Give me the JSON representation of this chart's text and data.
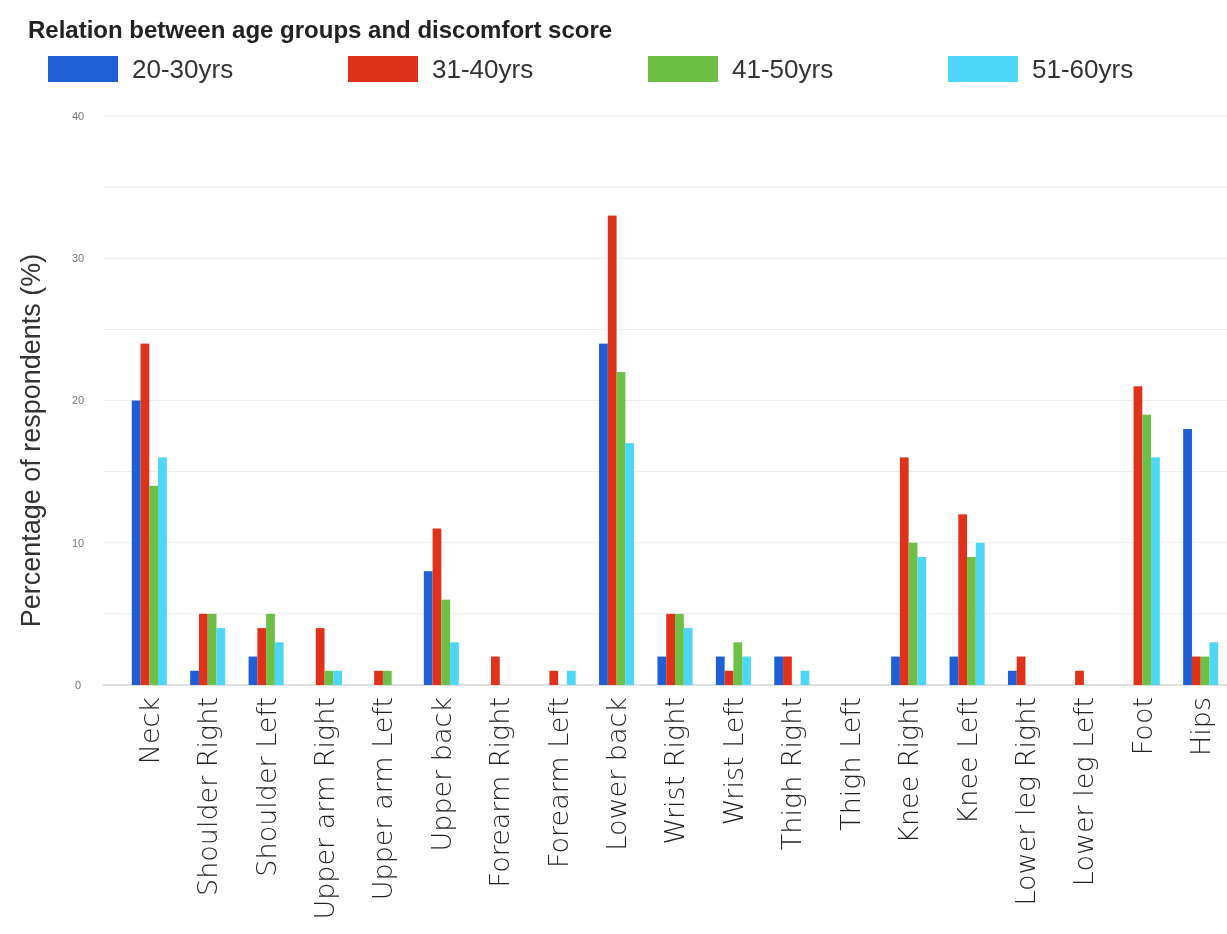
{
  "chart_data": {
    "type": "bar",
    "title": "Relation between age groups and discomfort score",
    "ylabel": "Percentage of respondents (%)",
    "categories": [
      "Neck",
      "Shoulder Right",
      "Shoulder Left",
      "Upper arm Right",
      "Upper arm Left",
      "Upper back",
      "Forearm Right",
      "Forearm Left",
      "Lower back",
      "Wrist Right",
      "Wrist Left",
      "Thigh Right",
      "Thigh Left",
      "Knee Right",
      "Knee Left",
      "Lower leg Right",
      "Lower leg Left",
      "Foot",
      "Hips"
    ],
    "series": [
      {
        "name": "20-30yrs",
        "color": "#1f5fd6",
        "values": [
          20,
          1,
          2,
          0,
          0,
          8,
          0,
          0,
          24,
          2,
          2,
          2,
          0,
          2,
          2,
          1,
          0,
          0,
          18
        ]
      },
      {
        "name": "31-40yrs",
        "color": "#e0321a",
        "values": [
          24,
          5,
          4,
          4,
          1,
          11,
          2,
          1,
          33,
          5,
          1,
          2,
          0,
          16,
          12,
          2,
          1,
          21,
          2
        ]
      },
      {
        "name": "41-50yrs",
        "color": "#6dbf45",
        "values": [
          14,
          5,
          5,
          1,
          1,
          6,
          0,
          0,
          22,
          5,
          3,
          0,
          0,
          10,
          9,
          0,
          0,
          19,
          2
        ]
      },
      {
        "name": "51-60yrs",
        "color": "#4dd6f5",
        "values": [
          16,
          4,
          3,
          1,
          0,
          3,
          0,
          1,
          17,
          4,
          2,
          1,
          0,
          9,
          10,
          0,
          0,
          16,
          3
        ]
      }
    ],
    "ylim": [
      0,
      40
    ],
    "yticks": [
      0,
      {
        "value": 5,
        "label": null
      },
      10,
      {
        "value": 15,
        "label": null
      },
      20,
      {
        "value": 25,
        "label": null
      },
      30,
      {
        "value": 35,
        "label": null
      },
      40
    ],
    "grid": "y",
    "legend": "top"
  }
}
